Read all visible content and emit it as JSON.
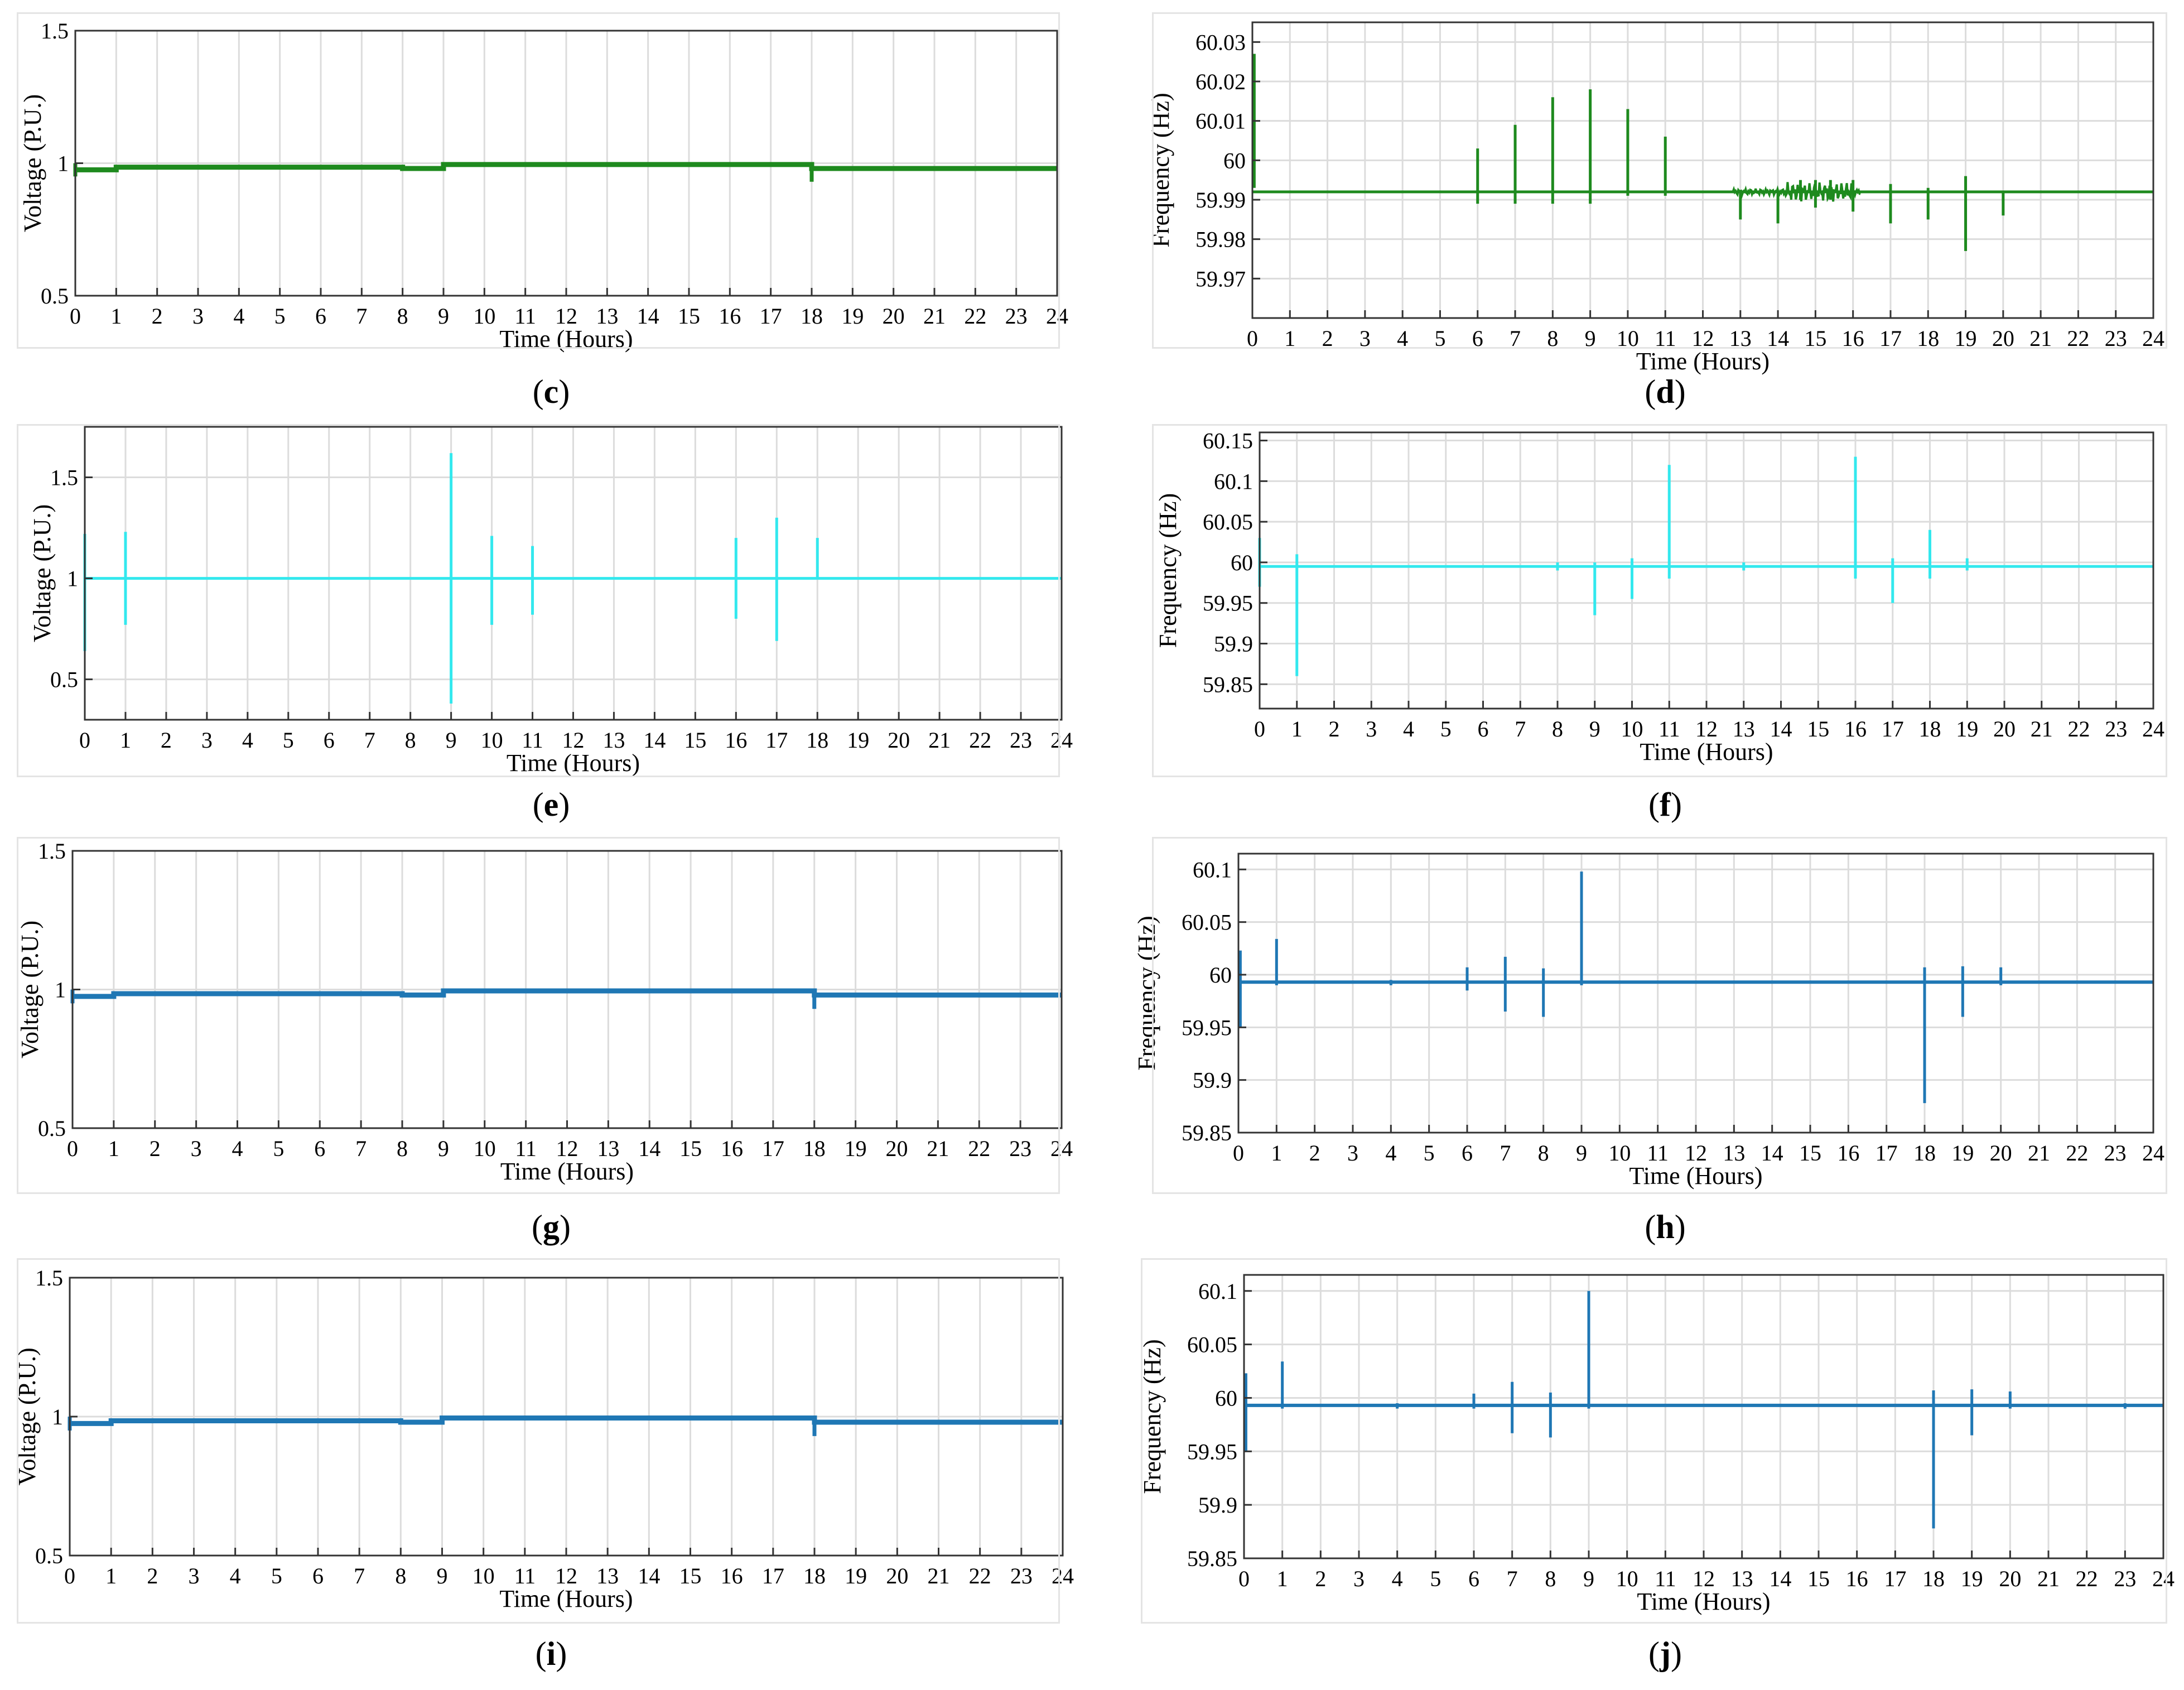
{
  "chart_data": [
    {
      "id": "c",
      "caption_letter": "c",
      "type": "line",
      "xlabel": "Time (Hours)",
      "ylabel": "Voltage (P.U.)",
      "xlim": [
        0,
        24
      ],
      "ylim": [
        0.5,
        1.5
      ],
      "xticks": [
        "0",
        "1",
        "2",
        "3",
        "4",
        "5",
        "6",
        "7",
        "8",
        "9",
        "10",
        "11",
        "12",
        "13",
        "14",
        "15",
        "16",
        "17",
        "18",
        "19",
        "20",
        "21",
        "22",
        "23",
        "24"
      ],
      "yticks": [
        {
          "v": 0.5,
          "label": "0.5"
        },
        {
          "v": 1,
          "label": "1"
        },
        {
          "v": 1.5,
          "label": "1.5"
        }
      ],
      "color": "#1e8a1e",
      "linewidth": 9,
      "baseline": [
        [
          0,
          0.975
        ],
        [
          1,
          0.975
        ],
        [
          1,
          0.985
        ],
        [
          8,
          0.985
        ],
        [
          8,
          0.98
        ],
        [
          9,
          0.98
        ],
        [
          9,
          0.995
        ],
        [
          18,
          0.995
        ],
        [
          18,
          0.98
        ],
        [
          24,
          0.98
        ]
      ],
      "spikes": [
        [
          0,
          0.95,
          1.0
        ],
        [
          18,
          0.93,
          0.995
        ]
      ]
    },
    {
      "id": "d",
      "caption_letter": "d",
      "type": "line",
      "xlabel": "Time (Hours)",
      "ylabel": "Frequency (Hz)",
      "xlim": [
        0,
        24
      ],
      "ylim": [
        59.96,
        60.035
      ],
      "xticks": [
        "0",
        "1",
        "2",
        "3",
        "4",
        "5",
        "6",
        "7",
        "8",
        "9",
        "10",
        "11",
        "12",
        "13",
        "14",
        "15",
        "16",
        "17",
        "18",
        "19",
        "20",
        "21",
        "22",
        "23",
        "24"
      ],
      "yticks": [
        {
          "v": 59.97,
          "label": "59.97"
        },
        {
          "v": 59.98,
          "label": "59.98"
        },
        {
          "v": 59.99,
          "label": "59.99"
        },
        {
          "v": 60.0,
          "label": "60"
        },
        {
          "v": 60.01,
          "label": "60.01"
        },
        {
          "v": 60.02,
          "label": "60.02"
        },
        {
          "v": 60.03,
          "label": "60.03"
        }
      ],
      "color": "#1e8a1e",
      "linewidth": 5,
      "baseline": [
        [
          0,
          59.992
        ],
        [
          24,
          59.992
        ]
      ],
      "spikes": [
        [
          0.05,
          59.993,
          60.027
        ],
        [
          6,
          59.989,
          60.003
        ],
        [
          7,
          59.989,
          60.009
        ],
        [
          8,
          59.989,
          60.016
        ],
        [
          9,
          59.989,
          60.018
        ],
        [
          10,
          59.991,
          60.013
        ],
        [
          11,
          59.991,
          60.006
        ],
        [
          13,
          59.985,
          59.992
        ],
        [
          14,
          59.984,
          59.992
        ],
        [
          14.6,
          59.99,
          59.995
        ],
        [
          15,
          59.988,
          59.995
        ],
        [
          15.4,
          59.99,
          59.995
        ],
        [
          16,
          59.987,
          59.995
        ],
        [
          17,
          59.984,
          59.994
        ],
        [
          18,
          59.985,
          59.993
        ],
        [
          19,
          59.977,
          59.996
        ],
        [
          20,
          59.986,
          59.992
        ]
      ],
      "noise": [
        12.8,
        16.2
      ]
    },
    {
      "id": "e",
      "caption_letter": "e",
      "type": "line",
      "xlabel": "Time (Hours)",
      "ylabel": "Voltage (P.U.)",
      "xlim": [
        0,
        24
      ],
      "ylim": [
        0.3,
        1.75
      ],
      "xticks": [
        "0",
        "1",
        "2",
        "3",
        "4",
        "5",
        "6",
        "7",
        "8",
        "9",
        "10",
        "11",
        "12",
        "13",
        "14",
        "15",
        "16",
        "17",
        "18",
        "19",
        "20",
        "21",
        "22",
        "23",
        "24"
      ],
      "yticks": [
        {
          "v": 0.5,
          "label": "0.5"
        },
        {
          "v": 1,
          "label": "1"
        },
        {
          "v": 1.5,
          "label": "1.5"
        }
      ],
      "color": "#33e8ee",
      "linewidth": 5,
      "baseline": [
        [
          0,
          1.0
        ],
        [
          24,
          1.0
        ]
      ],
      "spikes": [
        [
          0,
          0.64,
          1.22
        ],
        [
          1,
          0.77,
          1.23
        ],
        [
          9,
          0.38,
          1.62
        ],
        [
          10,
          0.77,
          1.21
        ],
        [
          11,
          0.82,
          1.16
        ],
        [
          16,
          0.8,
          1.2
        ],
        [
          17,
          0.69,
          1.3
        ],
        [
          18,
          1.0,
          1.2
        ]
      ]
    },
    {
      "id": "f",
      "caption_letter": "f",
      "type": "line",
      "xlabel": "Time (Hours)",
      "ylabel": "Frequency (Hz)",
      "xlim": [
        0,
        24
      ],
      "ylim": [
        59.82,
        60.16
      ],
      "xticks": [
        "0",
        "1",
        "2",
        "3",
        "4",
        "5",
        "6",
        "7",
        "8",
        "9",
        "10",
        "11",
        "12",
        "13",
        "14",
        "15",
        "16",
        "17",
        "18",
        "19",
        "20",
        "21",
        "22",
        "23",
        "24"
      ],
      "yticks": [
        {
          "v": 59.85,
          "label": "59.85"
        },
        {
          "v": 59.9,
          "label": "59.9"
        },
        {
          "v": 59.95,
          "label": "59.95"
        },
        {
          "v": 60.0,
          "label": "60"
        },
        {
          "v": 60.05,
          "label": "60.05"
        },
        {
          "v": 60.1,
          "label": "60.1"
        },
        {
          "v": 60.15,
          "label": "60.15"
        }
      ],
      "color": "#33e8ee",
      "linewidth": 5,
      "baseline": [
        [
          0,
          59.995
        ],
        [
          24,
          59.995
        ]
      ],
      "spikes": [
        [
          0,
          59.97,
          60.03
        ],
        [
          1,
          59.86,
          60.01
        ],
        [
          8,
          59.99,
          60.0
        ],
        [
          9,
          59.935,
          60.0
        ],
        [
          10,
          59.955,
          60.005
        ],
        [
          11,
          59.98,
          60.12
        ],
        [
          13,
          59.99,
          60.0
        ],
        [
          16,
          59.98,
          60.13
        ],
        [
          17,
          59.95,
          60.005
        ],
        [
          18,
          59.98,
          60.04
        ],
        [
          19,
          59.99,
          60.005
        ]
      ]
    },
    {
      "id": "g",
      "caption_letter": "g",
      "type": "line",
      "xlabel": "Time (Hours)",
      "ylabel": "Voltage (P.U.)",
      "xlim": [
        0,
        24
      ],
      "ylim": [
        0.5,
        1.5
      ],
      "xticks": [
        "0",
        "1",
        "2",
        "3",
        "4",
        "5",
        "6",
        "7",
        "8",
        "9",
        "10",
        "11",
        "12",
        "13",
        "14",
        "15",
        "16",
        "17",
        "18",
        "19",
        "20",
        "21",
        "22",
        "23",
        "24"
      ],
      "yticks": [
        {
          "v": 0.5,
          "label": "0.5"
        },
        {
          "v": 1,
          "label": "1"
        },
        {
          "v": 1.5,
          "label": "1.5"
        }
      ],
      "color": "#1f77b4",
      "linewidth": 9,
      "baseline": [
        [
          0,
          0.975
        ],
        [
          1,
          0.975
        ],
        [
          1,
          0.985
        ],
        [
          8,
          0.985
        ],
        [
          8,
          0.98
        ],
        [
          9,
          0.98
        ],
        [
          9,
          0.995
        ],
        [
          18,
          0.995
        ],
        [
          18,
          0.98
        ],
        [
          24,
          0.98
        ]
      ],
      "spikes": [
        [
          0,
          0.95,
          1.0
        ],
        [
          18,
          0.93,
          0.995
        ]
      ]
    },
    {
      "id": "h",
      "caption_letter": "h",
      "type": "line",
      "xlabel": "Time (Hours)",
      "ylabel": "Frequency (Hz)",
      "xlim": [
        0,
        24
      ],
      "ylim": [
        59.85,
        60.115
      ],
      "xticks": [
        "0",
        "1",
        "2",
        "3",
        "4",
        "5",
        "6",
        "7",
        "8",
        "9",
        "10",
        "11",
        "12",
        "13",
        "14",
        "15",
        "16",
        "17",
        "18",
        "19",
        "20",
        "21",
        "22",
        "23",
        "24"
      ],
      "yticks": [
        {
          "v": 59.85,
          "label": "59.85"
        },
        {
          "v": 59.9,
          "label": "59.9"
        },
        {
          "v": 59.95,
          "label": "59.95"
        },
        {
          "v": 60.0,
          "label": "60"
        },
        {
          "v": 60.05,
          "label": "60.05"
        },
        {
          "v": 60.1,
          "label": "60.1"
        }
      ],
      "color": "#1f77b4",
      "linewidth": 6,
      "baseline": [
        [
          0,
          59.993
        ],
        [
          24,
          59.993
        ]
      ],
      "spikes": [
        [
          0.05,
          59.95,
          60.023
        ],
        [
          1,
          59.99,
          60.034
        ],
        [
          4,
          59.99,
          59.995
        ],
        [
          6,
          59.985,
          60.007
        ],
        [
          7,
          59.965,
          60.017
        ],
        [
          8,
          59.96,
          60.006
        ],
        [
          9,
          59.99,
          60.098
        ],
        [
          18,
          59.878,
          60.007
        ],
        [
          19,
          59.96,
          60.008
        ],
        [
          20,
          59.99,
          60.007
        ]
      ]
    },
    {
      "id": "i",
      "caption_letter": "i",
      "type": "line",
      "xlabel": "Time (Hours)",
      "ylabel": "Voltage (P.U.)",
      "xlim": [
        0,
        24
      ],
      "ylim": [
        0.5,
        1.5
      ],
      "xticks": [
        "0",
        "1",
        "2",
        "3",
        "4",
        "5",
        "6",
        "7",
        "8",
        "9",
        "10",
        "11",
        "12",
        "13",
        "14",
        "15",
        "16",
        "17",
        "18",
        "19",
        "20",
        "21",
        "22",
        "23",
        "24"
      ],
      "yticks": [
        {
          "v": 0.5,
          "label": "0.5"
        },
        {
          "v": 1,
          "label": "1"
        },
        {
          "v": 1.5,
          "label": "1.5"
        }
      ],
      "color": "#1f77b4",
      "linewidth": 9,
      "baseline": [
        [
          0,
          0.975
        ],
        [
          1,
          0.975
        ],
        [
          1,
          0.985
        ],
        [
          8,
          0.985
        ],
        [
          8,
          0.98
        ],
        [
          9,
          0.98
        ],
        [
          9,
          0.995
        ],
        [
          18,
          0.995
        ],
        [
          18,
          0.98
        ],
        [
          24,
          0.98
        ]
      ],
      "spikes": [
        [
          0,
          0.95,
          1.0
        ],
        [
          18,
          0.93,
          0.995
        ]
      ]
    },
    {
      "id": "j",
      "caption_letter": "j",
      "type": "line",
      "xlabel": "Time (Hours)",
      "ylabel": "Frequency (Hz)",
      "xlim": [
        0,
        24
      ],
      "ylim": [
        59.85,
        60.115
      ],
      "xticks": [
        "0",
        "1",
        "2",
        "3",
        "4",
        "5",
        "6",
        "7",
        "8",
        "9",
        "10",
        "11",
        "12",
        "13",
        "14",
        "15",
        "16",
        "17",
        "18",
        "19",
        "20",
        "21",
        "22",
        "23",
        "24"
      ],
      "yticks": [
        {
          "v": 59.85,
          "label": "59.85"
        },
        {
          "v": 59.9,
          "label": "59.9"
        },
        {
          "v": 59.95,
          "label": "59.95"
        },
        {
          "v": 60.0,
          "label": "60"
        },
        {
          "v": 60.05,
          "label": "60.05"
        },
        {
          "v": 60.1,
          "label": "60.1"
        }
      ],
      "color": "#1f77b4",
      "linewidth": 6,
      "baseline": [
        [
          0,
          59.993
        ],
        [
          24,
          59.993
        ]
      ],
      "spikes": [
        [
          0.05,
          59.95,
          60.023
        ],
        [
          1,
          59.99,
          60.034
        ],
        [
          4,
          59.99,
          59.995
        ],
        [
          6,
          59.99,
          60.004
        ],
        [
          7,
          59.967,
          60.015
        ],
        [
          8,
          59.963,
          60.005
        ],
        [
          9,
          59.99,
          60.1
        ],
        [
          18,
          59.878,
          60.007
        ],
        [
          19,
          59.965,
          60.008
        ],
        [
          20,
          59.99,
          60.006
        ],
        [
          23,
          59.99,
          59.995
        ]
      ]
    }
  ]
}
